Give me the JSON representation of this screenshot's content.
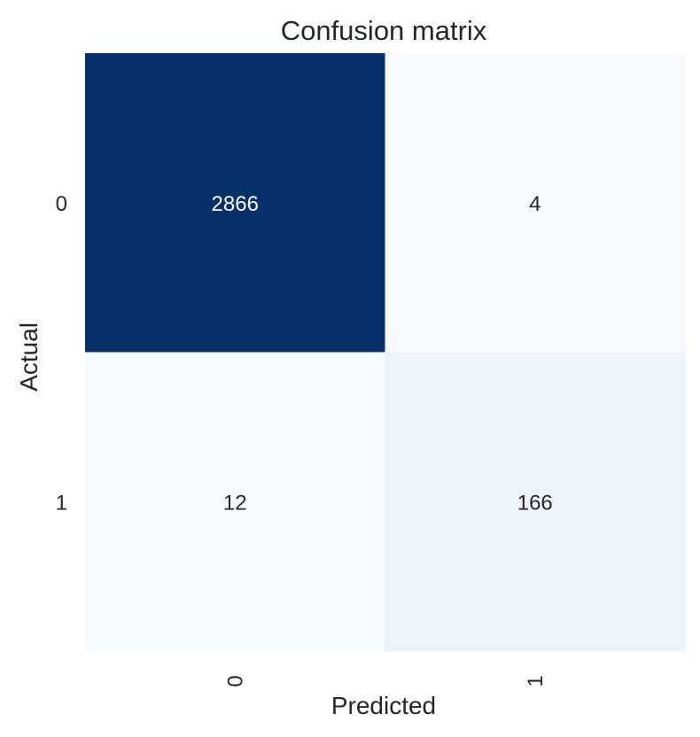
{
  "chart_data": {
    "type": "heatmap",
    "title": "Confusion matrix",
    "xlabel": "Predicted",
    "ylabel": "Actual",
    "x_categories": [
      "0",
      "1"
    ],
    "y_categories": [
      "0",
      "1"
    ],
    "values": [
      [
        2866,
        4
      ],
      [
        12,
        166
      ]
    ],
    "colormap": "Blues",
    "colors": {
      "min": "#f7fbff",
      "max": "#08306b",
      "light_text": "#ffffff",
      "dark_text": "#262626"
    },
    "colorbar": false,
    "grid": false
  }
}
